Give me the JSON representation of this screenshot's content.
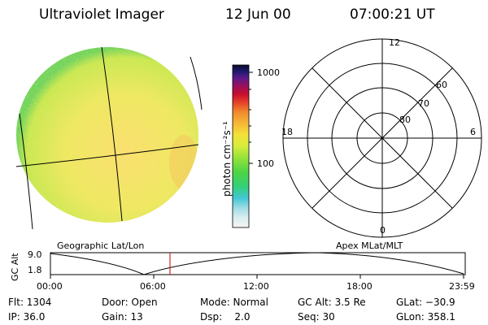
{
  "header": {
    "instrument": "Ultraviolet Imager",
    "date": "12 Jun 00",
    "time": "07:00:21 UT"
  },
  "colorbar": {
    "label": "photon cm⁻²s⁻¹",
    "ticks": [
      "1000",
      "100"
    ]
  },
  "polar_plot": {
    "mlt_labels": {
      "top": "12",
      "left": "18",
      "right": "6",
      "bottom": "0"
    },
    "mlat_labels": [
      "60",
      "70",
      "80"
    ]
  },
  "coord_labels": {
    "left": "Geographic Lat/Lon",
    "right": "Apex MLat/MLT"
  },
  "altitude_plot": {
    "ylabel": "GC Alt",
    "yticks": [
      "9.0",
      "1.8"
    ],
    "xticks": [
      "00:00",
      "06:00",
      "12:00",
      "18:00",
      "23:59"
    ]
  },
  "status": {
    "flt": "Flt: 1304",
    "ip": "IP: 36.0",
    "door": "Door: Open",
    "gain": "Gain: 13",
    "mode": "Mode: Normal",
    "dsp": "Dsp:    2.0",
    "gc_alt": "GC Alt: 3.5 Re",
    "seq": "Seq: 30",
    "glat": "GLat: −30.9",
    "glon": "GLon: 358.1"
  },
  "colors": {
    "disk_base": "#e3ee5a",
    "disk_center": "#f7e46a",
    "disk_edge": "#79d45c",
    "current_time_marker": "#cc0000"
  }
}
